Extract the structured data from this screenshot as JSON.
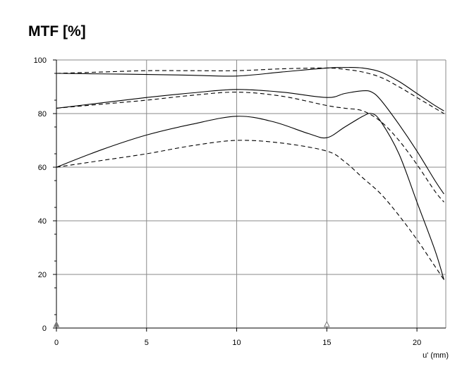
{
  "chart_data": {
    "type": "line",
    "title": "MTF [%]",
    "xlabel": "u' (mm)",
    "ylabel": "",
    "xlim": [
      0,
      21.6
    ],
    "ylim": [
      0,
      100
    ],
    "xticks": [
      0,
      5,
      10,
      15,
      20
    ],
    "yticks": [
      0,
      20,
      40,
      60,
      80,
      100
    ],
    "grid": true,
    "legend": "none",
    "markers": [
      {
        "x": 0,
        "y": 0,
        "color": "#777777",
        "filled": true
      },
      {
        "x": 15,
        "y": 0,
        "color": "#777777",
        "filled": false
      }
    ],
    "series": [
      {
        "style": "solid",
        "color": "#000000",
        "points": [
          [
            0,
            95
          ],
          [
            2.5,
            94.8
          ],
          [
            5,
            94.6
          ],
          [
            7.5,
            94.3
          ],
          [
            10,
            94
          ],
          [
            12.5,
            95.5
          ],
          [
            15,
            97
          ],
          [
            16,
            97.2
          ],
          [
            17,
            97
          ],
          [
            18,
            95.5
          ],
          [
            19,
            92
          ],
          [
            20,
            87.5
          ],
          [
            21,
            83
          ],
          [
            21.5,
            81
          ]
        ]
      },
      {
        "style": "dashed",
        "color": "#000000",
        "points": [
          [
            0,
            95
          ],
          [
            2.5,
            95.5
          ],
          [
            5,
            96
          ],
          [
            7.5,
            96
          ],
          [
            10,
            96
          ],
          [
            12.5,
            96.7
          ],
          [
            15,
            97
          ],
          [
            16,
            96.5
          ],
          [
            17,
            95.5
          ],
          [
            18,
            93.5
          ],
          [
            19,
            90
          ],
          [
            20,
            86
          ],
          [
            21,
            82
          ],
          [
            21.5,
            80
          ]
        ]
      },
      {
        "style": "solid",
        "color": "#000000",
        "points": [
          [
            0,
            82
          ],
          [
            2.5,
            84
          ],
          [
            5,
            86
          ],
          [
            7.5,
            87.7
          ],
          [
            10,
            89
          ],
          [
            12.5,
            88
          ],
          [
            15,
            86
          ],
          [
            16,
            87.5
          ],
          [
            17,
            88.5
          ],
          [
            17.5,
            88
          ],
          [
            18,
            85
          ],
          [
            19,
            76
          ],
          [
            20,
            66
          ],
          [
            21,
            55
          ],
          [
            21.5,
            50
          ]
        ]
      },
      {
        "style": "dashed",
        "color": "#000000",
        "points": [
          [
            0,
            82
          ],
          [
            2.5,
            83.5
          ],
          [
            5,
            85
          ],
          [
            7.5,
            86.8
          ],
          [
            10,
            88
          ],
          [
            12.5,
            86.5
          ],
          [
            15,
            83
          ],
          [
            16,
            82
          ],
          [
            17,
            81
          ],
          [
            18,
            77
          ],
          [
            19,
            70
          ],
          [
            20,
            61
          ],
          [
            21,
            51
          ],
          [
            21.5,
            47
          ]
        ]
      },
      {
        "style": "solid",
        "color": "#000000",
        "points": [
          [
            0,
            60
          ],
          [
            2.5,
            66.5
          ],
          [
            5,
            72
          ],
          [
            7.5,
            76
          ],
          [
            10,
            79
          ],
          [
            12,
            77
          ],
          [
            14,
            72.5
          ],
          [
            15,
            71
          ],
          [
            16,
            75
          ],
          [
            17,
            79
          ],
          [
            17.5,
            80
          ],
          [
            18,
            77
          ],
          [
            19,
            65
          ],
          [
            20,
            47
          ],
          [
            21,
            29
          ],
          [
            21.5,
            18
          ]
        ]
      },
      {
        "style": "dashed",
        "color": "#000000",
        "points": [
          [
            0,
            60
          ],
          [
            2.5,
            62.5
          ],
          [
            5,
            65
          ],
          [
            7.5,
            68
          ],
          [
            10,
            70
          ],
          [
            12.5,
            69
          ],
          [
            15,
            66
          ],
          [
            16,
            62
          ],
          [
            17,
            56
          ],
          [
            18,
            50
          ],
          [
            19,
            42
          ],
          [
            20,
            33
          ],
          [
            21,
            23
          ],
          [
            21.5,
            18
          ]
        ]
      }
    ]
  }
}
